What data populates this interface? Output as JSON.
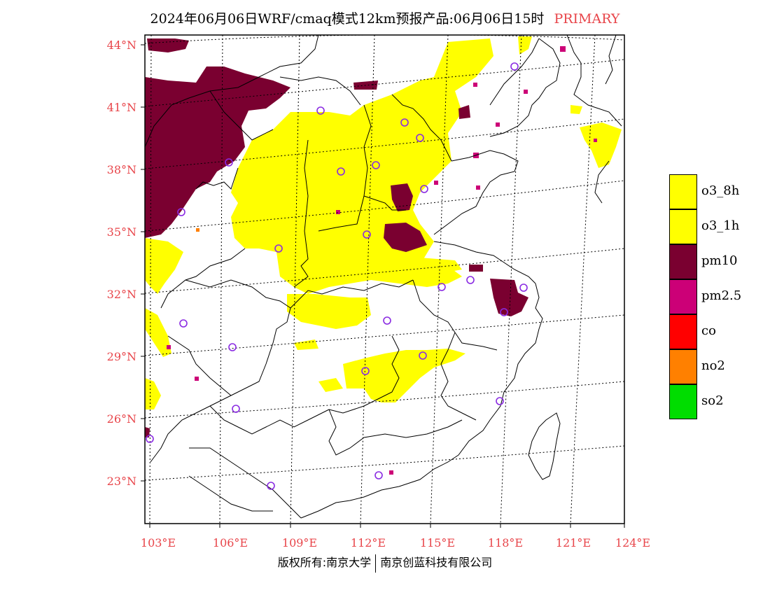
{
  "title": {
    "text": "2024年06月06日WRF/cmaq模式12km预报产品:06月06日15时",
    "tag": "PRIMARY"
  },
  "colors": {
    "o3_8h": "#ffff00",
    "o3_1h": "#ffff00",
    "pm10": "#7a0030",
    "pm2_5": "#cc0077",
    "co": "#ff0000",
    "no2": "#ff8000",
    "so2": "#00dd00",
    "axis_label": "#e8454a",
    "station_marker": "#8a2be2"
  },
  "axes": {
    "lat_labels": [
      "44°N",
      "41°N",
      "38°N",
      "35°N",
      "32°N",
      "29°N",
      "26°N",
      "23°N"
    ],
    "lon_labels": [
      "103°E",
      "106°E",
      "109°E",
      "112°E",
      "115°E",
      "118°E",
      "121°E",
      "124°E"
    ]
  },
  "legend": [
    {
      "key": "o3_8h",
      "label": "o3_8h"
    },
    {
      "key": "o3_1h",
      "label": "o3_1h"
    },
    {
      "key": "pm10",
      "label": "pm10"
    },
    {
      "key": "pm2_5",
      "label": "pm2.5"
    },
    {
      "key": "co",
      "label": "co"
    },
    {
      "key": "no2",
      "label": "no2"
    },
    {
      "key": "so2",
      "label": "so2"
    }
  ],
  "copyright": {
    "left": "版权所有:南京大学",
    "right": "南京创蓝科技有限公司"
  }
}
